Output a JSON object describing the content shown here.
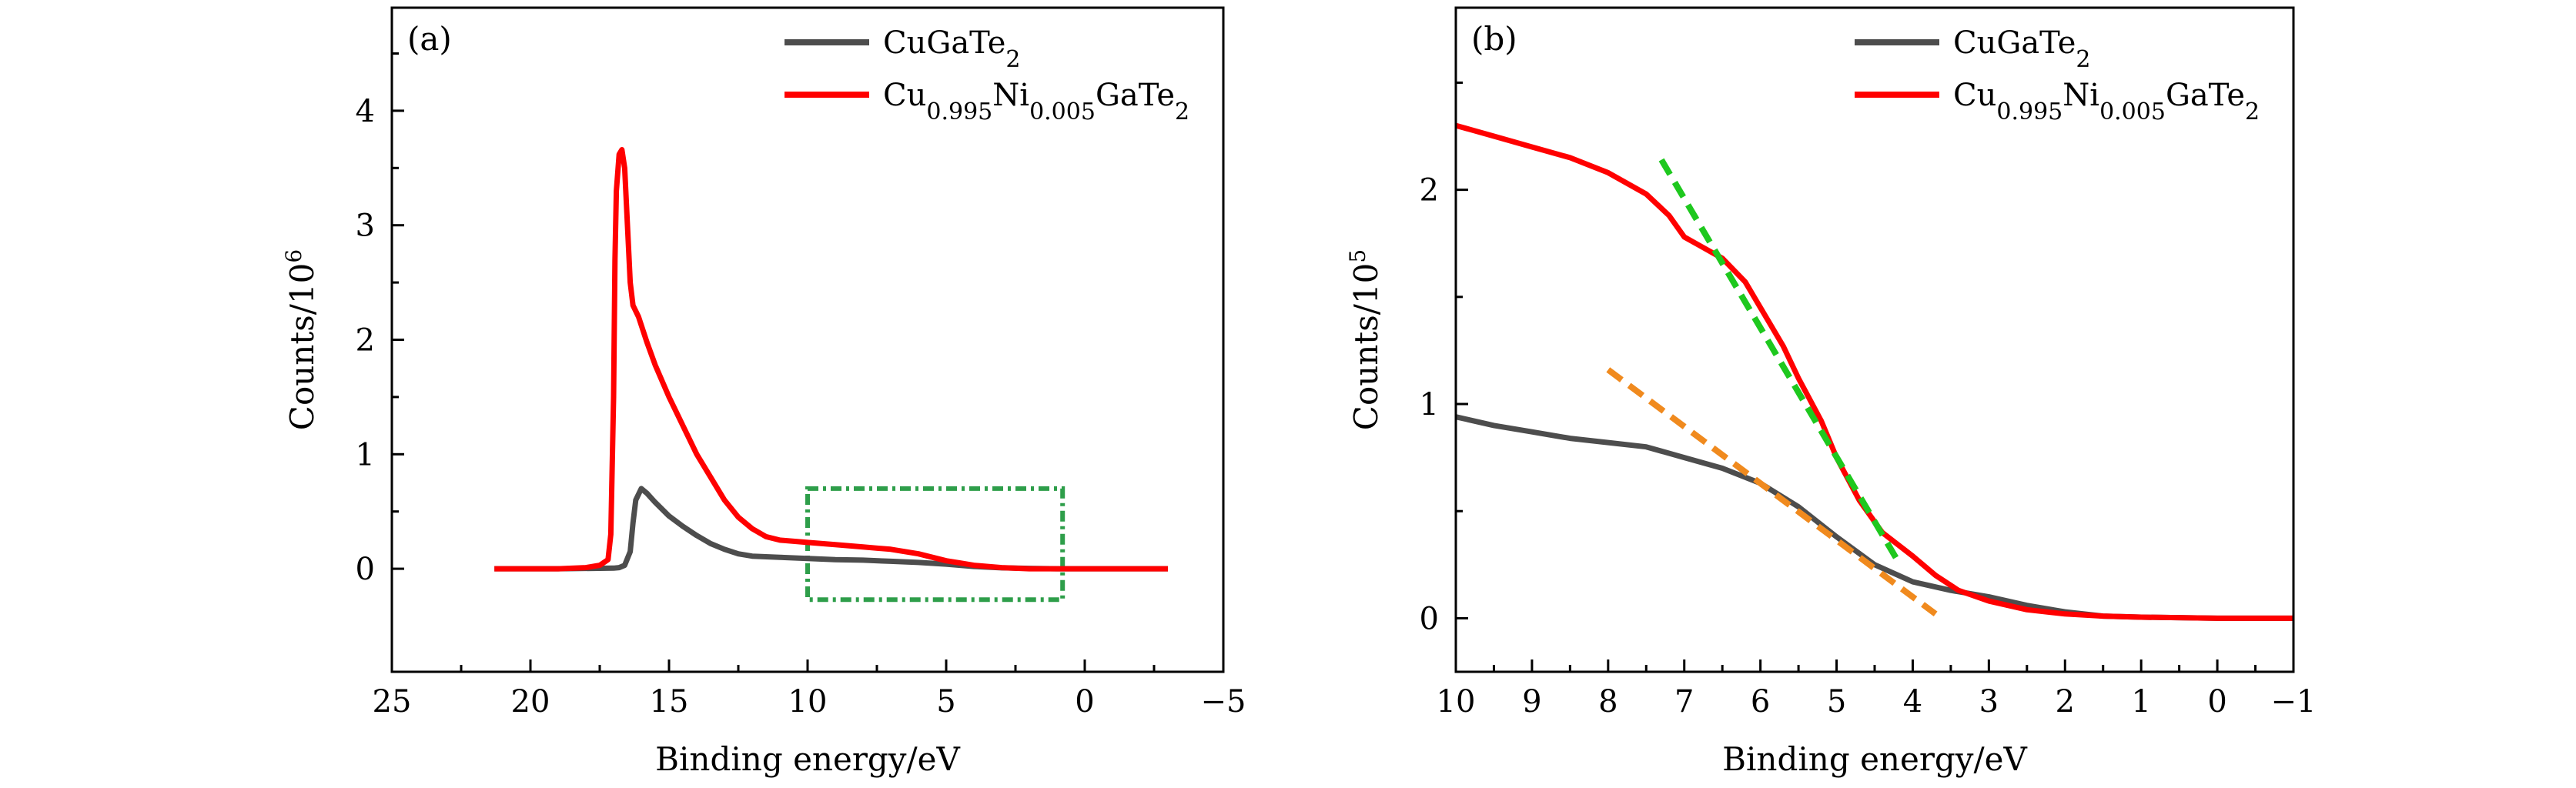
{
  "chart_data": [
    {
      "panel_label": "(a)",
      "type": "line",
      "xlabel": "Binding energy/eV",
      "ylabel": "Counts/10",
      "ylabel_sup": "6",
      "xlim": [
        25,
        -5
      ],
      "ylim": [
        -0.9,
        4.9
      ],
      "xticks": [
        25,
        20,
        15,
        10,
        5,
        0,
        -5
      ],
      "xtick_labels": [
        "25",
        "20",
        "15",
        "10",
        "5",
        "0",
        "−5"
      ],
      "yticks": [
        0,
        1,
        2,
        3,
        4
      ],
      "ytick_labels": [
        "0",
        "1",
        "2",
        "3",
        "4"
      ],
      "legend_position": "top-right",
      "series": [
        {
          "name": "CuGaTe2",
          "legend_base": "CuGaTe",
          "legend_sub": "2",
          "color": "#4d4d4d",
          "points": [
            [
              21.3,
              0
            ],
            [
              19,
              0
            ],
            [
              17,
              0.005
            ],
            [
              16.8,
              0.01
            ],
            [
              16.6,
              0.03
            ],
            [
              16.4,
              0.15
            ],
            [
              16.3,
              0.4
            ],
            [
              16.2,
              0.6
            ],
            [
              16.0,
              0.7
            ],
            [
              15.8,
              0.66
            ],
            [
              15.5,
              0.58
            ],
            [
              15,
              0.46
            ],
            [
              14.5,
              0.37
            ],
            [
              14,
              0.29
            ],
            [
              13.5,
              0.22
            ],
            [
              13,
              0.17
            ],
            [
              12.5,
              0.13
            ],
            [
              12,
              0.11
            ],
            [
              11,
              0.1
            ],
            [
              10,
              0.09
            ],
            [
              9,
              0.08
            ],
            [
              8,
              0.075
            ],
            [
              7,
              0.065
            ],
            [
              6,
              0.055
            ],
            [
              5,
              0.04
            ],
            [
              4,
              0.02
            ],
            [
              3,
              0.008
            ],
            [
              2,
              0.003
            ],
            [
              1,
              0
            ],
            [
              -3,
              0
            ]
          ]
        },
        {
          "name": "Cu0.995Ni0.005GaTe2",
          "legend_base": "Cu",
          "legend_parts": [
            [
              "0.995",
              true
            ],
            [
              "Ni",
              false
            ],
            [
              "0.005",
              true
            ],
            [
              "GaTe",
              false
            ],
            [
              "2",
              true
            ]
          ],
          "color": "#ff0000",
          "points": [
            [
              21.3,
              0
            ],
            [
              19,
              0
            ],
            [
              18,
              0.01
            ],
            [
              17.5,
              0.03
            ],
            [
              17.2,
              0.08
            ],
            [
              17.1,
              0.3
            ],
            [
              17.0,
              1.5
            ],
            [
              16.95,
              2.7
            ],
            [
              16.9,
              3.3
            ],
            [
              16.8,
              3.62
            ],
            [
              16.7,
              3.66
            ],
            [
              16.6,
              3.5
            ],
            [
              16.5,
              3.0
            ],
            [
              16.4,
              2.5
            ],
            [
              16.3,
              2.3
            ],
            [
              16.1,
              2.2
            ],
            [
              15.8,
              1.98
            ],
            [
              15.5,
              1.78
            ],
            [
              15,
              1.5
            ],
            [
              14.5,
              1.25
            ],
            [
              14,
              1.0
            ],
            [
              13.5,
              0.8
            ],
            [
              13,
              0.6
            ],
            [
              12.5,
              0.45
            ],
            [
              12,
              0.35
            ],
            [
              11.5,
              0.28
            ],
            [
              11,
              0.25
            ],
            [
              10,
              0.23
            ],
            [
              9,
              0.21
            ],
            [
              8,
              0.19
            ],
            [
              7,
              0.17
            ],
            [
              6,
              0.13
            ],
            [
              5.5,
              0.1
            ],
            [
              5,
              0.07
            ],
            [
              4.5,
              0.05
            ],
            [
              4,
              0.03
            ],
            [
              3.5,
              0.02
            ],
            [
              3,
              0.01
            ],
            [
              2,
              0
            ],
            [
              -3,
              0
            ]
          ]
        }
      ],
      "annotation_box": {
        "x": [
          10,
          0.8
        ],
        "y": [
          -0.27,
          0.7
        ],
        "color": "#2e9e4a"
      }
    },
    {
      "panel_label": "(b)",
      "type": "line",
      "xlabel": "Binding energy/eV",
      "ylabel": "Counts/10",
      "ylabel_sup": "5",
      "xlim": [
        10,
        -1
      ],
      "ylim": [
        -0.25,
        2.85
      ],
      "xticks": [
        10,
        9,
        8,
        7,
        6,
        5,
        4,
        3,
        2,
        1,
        0,
        -1
      ],
      "xtick_labels": [
        "10",
        "9",
        "8",
        "7",
        "6",
        "5",
        "4",
        "3",
        "2",
        "1",
        "0",
        "−1"
      ],
      "yticks": [
        0,
        1,
        2
      ],
      "ytick_labels": [
        "0",
        "1",
        "2"
      ],
      "legend_position": "top-right",
      "series": [
        {
          "name": "CuGaTe2",
          "legend_base": "CuGaTe",
          "legend_sub": "2",
          "color": "#4d4d4d",
          "points": [
            [
              10,
              0.94
            ],
            [
              9.5,
              0.9
            ],
            [
              9,
              0.87
            ],
            [
              8.5,
              0.84
            ],
            [
              8,
              0.82
            ],
            [
              7.5,
              0.8
            ],
            [
              7,
              0.75
            ],
            [
              6.5,
              0.7
            ],
            [
              6,
              0.63
            ],
            [
              5.5,
              0.52
            ],
            [
              5,
              0.38
            ],
            [
              4.5,
              0.25
            ],
            [
              4,
              0.17
            ],
            [
              3.5,
              0.13
            ],
            [
              3,
              0.1
            ],
            [
              2.5,
              0.06
            ],
            [
              2,
              0.03
            ],
            [
              1.5,
              0.01
            ],
            [
              1,
              0.005
            ],
            [
              0,
              0
            ],
            [
              -1,
              0
            ]
          ]
        },
        {
          "name": "Cu0.995Ni0.005GaTe2",
          "legend_base": "Cu",
          "legend_parts": [
            [
              "0.995",
              true
            ],
            [
              "Ni",
              false
            ],
            [
              "0.005",
              true
            ],
            [
              "GaTe",
              false
            ],
            [
              "2",
              true
            ]
          ],
          "color": "#ff0000",
          "points": [
            [
              10,
              2.3
            ],
            [
              9.5,
              2.25
            ],
            [
              9,
              2.2
            ],
            [
              8.5,
              2.15
            ],
            [
              8,
              2.08
            ],
            [
              7.5,
              1.98
            ],
            [
              7.2,
              1.88
            ],
            [
              7.0,
              1.78
            ],
            [
              6.8,
              1.74
            ],
            [
              6.5,
              1.68
            ],
            [
              6.2,
              1.57
            ],
            [
              6.0,
              1.45
            ],
            [
              5.7,
              1.27
            ],
            [
              5.5,
              1.12
            ],
            [
              5.2,
              0.92
            ],
            [
              5.0,
              0.75
            ],
            [
              4.7,
              0.55
            ],
            [
              4.4,
              0.4
            ],
            [
              4.0,
              0.29
            ],
            [
              3.7,
              0.2
            ],
            [
              3.4,
              0.13
            ],
            [
              3.0,
              0.08
            ],
            [
              2.5,
              0.04
            ],
            [
              2,
              0.02
            ],
            [
              1.5,
              0.01
            ],
            [
              1,
              0.005
            ],
            [
              0,
              0
            ],
            [
              -1,
              0
            ]
          ]
        }
      ],
      "fit_lines": [
        {
          "color": "#1ec81e",
          "points": [
            [
              7.3,
              2.14
            ],
            [
              4.2,
              0.27
            ]
          ]
        },
        {
          "color": "#f08a1e",
          "points": [
            [
              8.0,
              1.16
            ],
            [
              3.7,
              0.02
            ]
          ]
        }
      ]
    }
  ]
}
